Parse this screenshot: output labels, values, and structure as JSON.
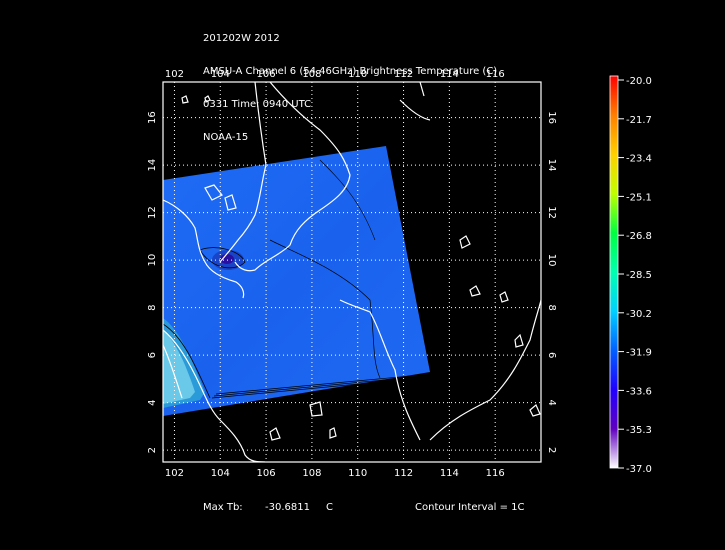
{
  "header": {
    "line1": "201202W 2012",
    "line2": "AMSU-A Channel 6 (54.46GHz) Brightness Temperature (C)",
    "line3": "0331 Time: 0940 UTC",
    "line4": "NOAA-15"
  },
  "map": {
    "lon_labels": [
      "102",
      "104",
      "106",
      "108",
      "110",
      "112",
      "114",
      "116"
    ],
    "lat_labels": [
      "2",
      "4",
      "6",
      "8",
      "10",
      "12",
      "14",
      "16"
    ],
    "lon_range": [
      101.5,
      118
    ],
    "lat_range": [
      1.5,
      17.5
    ],
    "grid": true,
    "grid_color": "#ffffff",
    "swath_color": "#1a64f0",
    "coast_color": "#ffffff",
    "contour_color": "#000000"
  },
  "colorbar": {
    "labels": [
      "-20.0",
      "-21.7",
      "-23.4",
      "-25.1",
      "-26.8",
      "-28.5",
      "-30.2",
      "-31.9",
      "-33.6",
      "-35.3",
      "-37.0"
    ],
    "colors": [
      "#ff0000",
      "#ff8000",
      "#ffd000",
      "#c0ff00",
      "#00ff40",
      "#00ffb0",
      "#00d0ff",
      "#0060ff",
      "#2000ff",
      "#6000c0",
      "#ffffff"
    ]
  },
  "footer": {
    "max_label": "Max Tb:",
    "max_value": "-30.6811",
    "max_unit": "C",
    "contour_interval": "Contour Interval = 1C"
  }
}
